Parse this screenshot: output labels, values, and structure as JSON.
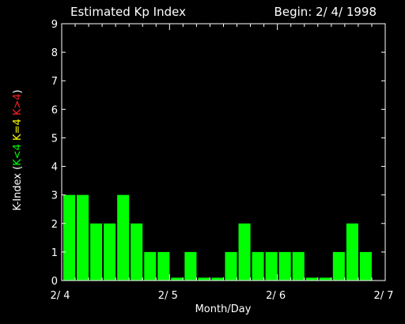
{
  "chart_data": {
    "type": "bar",
    "title": "Estimated Kp Index",
    "subtitle": "Begin: 2/ 4/ 1998",
    "xlabel": "Month/Day",
    "ylabel": {
      "prefix": "K-Index (",
      "parts": [
        {
          "text": "K<4",
          "color": "#00ff00"
        },
        {
          "text": "K=4",
          "color": "#ffff00"
        },
        {
          "text": "K>4",
          "color": "#ff2020"
        }
      ],
      "suffix": ")"
    },
    "ylim": [
      0,
      9
    ],
    "yticks": [
      "0",
      "1",
      "2",
      "3",
      "4",
      "5",
      "6",
      "7",
      "8",
      "9"
    ],
    "xlim_days": [
      0,
      3
    ],
    "xticks": [
      "2/ 4",
      "2/ 5",
      "2/ 6",
      "2/ 7"
    ],
    "interval_hours": 3,
    "values": [
      3,
      3,
      2,
      2,
      3,
      2,
      1,
      1,
      0.1,
      1,
      0.1,
      0.1,
      1,
      2,
      1,
      1,
      1,
      1,
      0.1,
      0.1,
      1,
      2,
      1,
      0
    ],
    "colors": {
      "background": "#000000",
      "axes": "#ffffff",
      "bar_low": "#00ff00",
      "bar_equal": "#ffff00",
      "bar_high": "#ff2020"
    },
    "grid": false,
    "legend": "none"
  }
}
